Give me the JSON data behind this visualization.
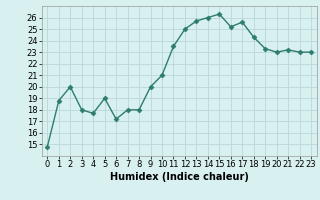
{
  "x": [
    0,
    1,
    2,
    3,
    4,
    5,
    6,
    7,
    8,
    9,
    10,
    11,
    12,
    13,
    14,
    15,
    16,
    17,
    18,
    19,
    20,
    21,
    22,
    23
  ],
  "y": [
    14.8,
    18.8,
    20.0,
    18.0,
    17.7,
    19.0,
    17.2,
    18.0,
    18.0,
    20.0,
    21.0,
    23.5,
    25.0,
    25.7,
    26.0,
    26.3,
    25.2,
    25.6,
    24.3,
    23.3,
    23.0,
    23.2,
    23.0,
    23.0
  ],
  "line_color": "#2d7d6e",
  "marker": "D",
  "markersize": 2.5,
  "linewidth": 1.0,
  "bg_color": "#d8f0f0",
  "grid_color": "#b8d8d8",
  "xlabel": "Humidex (Indice chaleur)",
  "xlabel_fontsize": 7,
  "ylabel_fontsize": 6,
  "tick_fontsize": 6,
  "ylim": [
    14,
    27
  ],
  "yticks": [
    15,
    16,
    17,
    18,
    19,
    20,
    21,
    22,
    23,
    24,
    25,
    26
  ],
  "xlim": [
    -0.5,
    23.5
  ],
  "xticks": [
    0,
    1,
    2,
    3,
    4,
    5,
    6,
    7,
    8,
    9,
    10,
    11,
    12,
    13,
    14,
    15,
    16,
    17,
    18,
    19,
    20,
    21,
    22,
    23
  ]
}
